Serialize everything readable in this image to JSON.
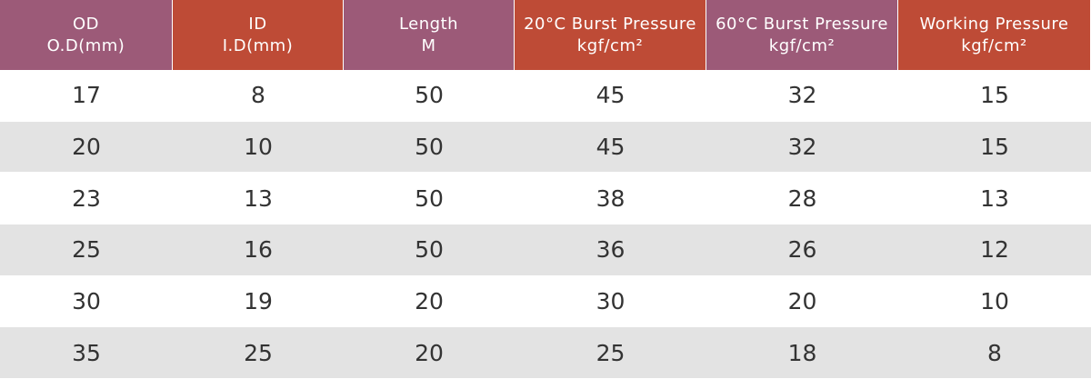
{
  "table": {
    "header": [
      [
        "OD",
        "O.D(mm)"
      ],
      [
        "ID",
        "I.D(mm)"
      ],
      [
        "Length",
        "M"
      ],
      [
        "20°C Burst Pressure",
        "kgf/cm²"
      ],
      [
        "60°C Burst Pressure",
        "kgf/cm²"
      ],
      [
        "Working Pressure",
        "kgf/cm²"
      ]
    ],
    "rows": [
      [
        17,
        8,
        50,
        45,
        32,
        15
      ],
      [
        20,
        10,
        50,
        45,
        32,
        15
      ],
      [
        23,
        13,
        50,
        38,
        28,
        13
      ],
      [
        25,
        16,
        50,
        36,
        26,
        12
      ],
      [
        30,
        19,
        20,
        30,
        20,
        10
      ],
      [
        35,
        25,
        20,
        25,
        18,
        8
      ]
    ]
  }
}
